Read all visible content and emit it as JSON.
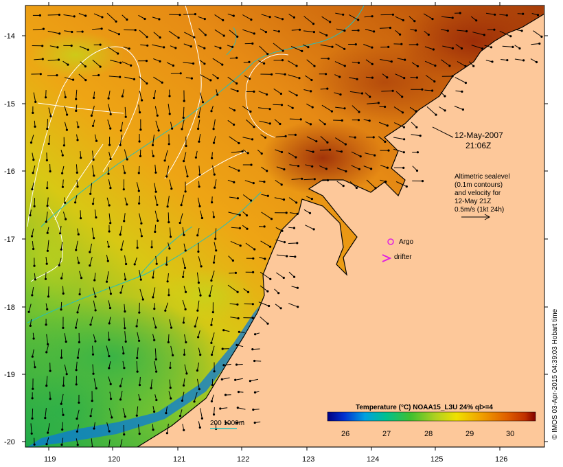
{
  "map": {
    "date_line1": "12-May-2007",
    "date_line2": "21:06Z",
    "lon_ticks": [
      "119",
      "120",
      "121",
      "122",
      "123",
      "124",
      "125",
      "126"
    ],
    "lat_ticks": [
      "-14",
      "-15",
      "-16",
      "-17",
      "-18",
      "-19",
      "-20"
    ],
    "altimetry_note": [
      "Altimetric sealevel",
      "(0.1m contours)",
      "and velocity for",
      "12-May 21Z",
      "0.5m/s (1kt 24h)"
    ],
    "legend": {
      "argo": "Argo",
      "drifter": "drifter"
    },
    "depth_legend": "200  1000m",
    "colorbar": {
      "title": "Temperature (°C) NOAA15_L3U 24% ql>=4",
      "ticks": [
        "26",
        "27",
        "28",
        "29",
        "30"
      ]
    },
    "credit": "© IMOS 03-Apr-2015 04:39:03 Hobart time",
    "colors": {
      "land": "#fdc89a",
      "argo": "#e020e0",
      "drifter": "#e020e0",
      "isobath": "#20c0c0",
      "contour": "#ffffff"
    }
  }
}
